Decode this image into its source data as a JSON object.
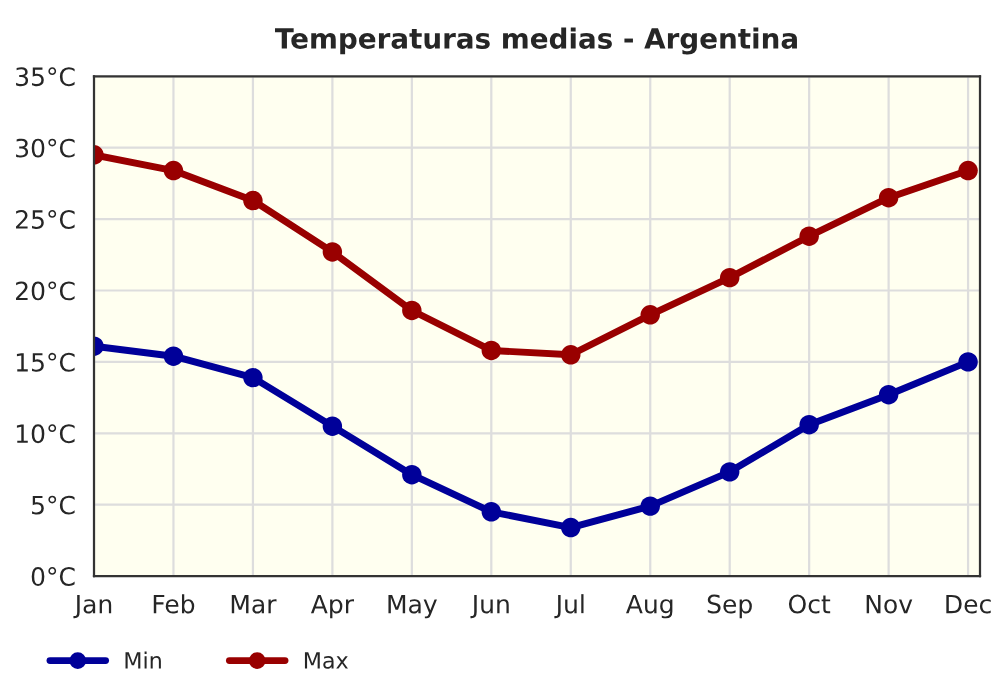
{
  "chart_data": {
    "type": "line",
    "title": "Temperaturas medias - Argentina",
    "categories": [
      "Jan",
      "Feb",
      "Mar",
      "Apr",
      "May",
      "Jun",
      "Jul",
      "Aug",
      "Sep",
      "Oct",
      "Nov",
      "Dec"
    ],
    "series": [
      {
        "name": "Min",
        "color": "#000099",
        "values": [
          16.1,
          15.4,
          13.9,
          10.5,
          7.1,
          4.5,
          3.4,
          4.9,
          7.3,
          10.6,
          12.7,
          15.0
        ]
      },
      {
        "name": "Max",
        "color": "#990000",
        "values": [
          29.5,
          28.4,
          26.3,
          22.7,
          18.6,
          15.8,
          15.5,
          18.3,
          20.9,
          23.8,
          26.5,
          28.4
        ]
      }
    ],
    "ylim": [
      0,
      35
    ],
    "yticks": [
      {
        "value": 0,
        "label": "0°C"
      },
      {
        "value": 5,
        "label": "5°C"
      },
      {
        "value": 10,
        "label": "10°C"
      },
      {
        "value": 15,
        "label": "15°C"
      },
      {
        "value": 20,
        "label": "20°C"
      },
      {
        "value": 25,
        "label": "25°C"
      },
      {
        "value": 30,
        "label": "30°C"
      },
      {
        "value": 35,
        "label": "35°C"
      }
    ],
    "grid": true,
    "legend": "bottom left",
    "marker": "circle",
    "line_style": "solid"
  }
}
